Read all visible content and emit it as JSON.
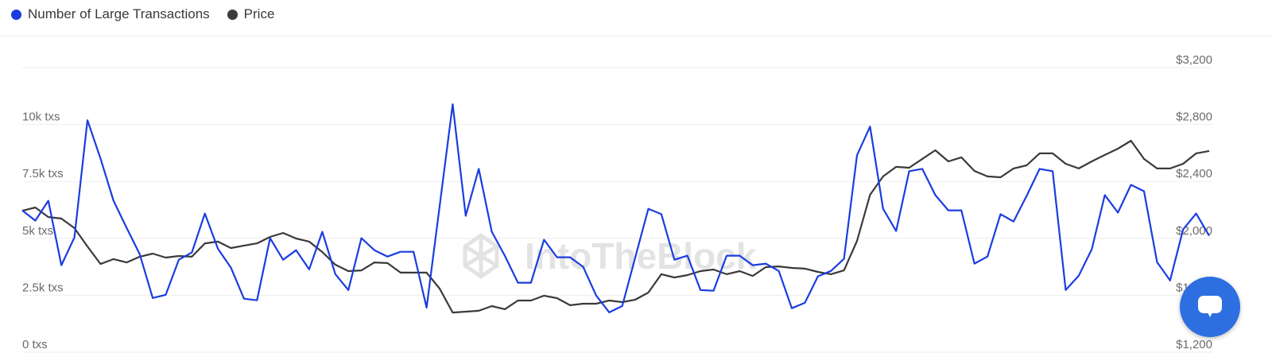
{
  "legend": [
    {
      "label": "Number of Large Transactions",
      "color": "#1a3de0"
    },
    {
      "label": "Price",
      "color": "#3a3a3a"
    }
  ],
  "watermark": "IntoTheBlock",
  "chat_button": {
    "icon": "chat-bubble-icon",
    "color": "#2d6fe0"
  },
  "chart_data": {
    "type": "line",
    "grid": true,
    "legend_position": "top-left",
    "y_left": {
      "ticks": [
        "0 txs",
        "2.5k txs",
        "5k txs",
        "7.5k txs",
        "10k txs"
      ],
      "tick_values": [
        0,
        2500,
        5000,
        7500,
        10000
      ],
      "range": [
        0,
        12500
      ]
    },
    "y_right": {
      "ticks": [
        "$1,200",
        "$1,600",
        "$2,000",
        "$2,400",
        "$2,800",
        "$3,200"
      ],
      "tick_values": [
        1200,
        1600,
        2000,
        2400,
        2800,
        3200
      ],
      "range": [
        1200,
        3200
      ]
    },
    "series": [
      {
        "name": "Number of Large Transactions",
        "axis": "left",
        "color": "#1a3de0",
        "values": [
          6230,
          5780,
          6650,
          3820,
          5040,
          10190,
          8510,
          6650,
          5460,
          4310,
          2380,
          2520,
          4060,
          4380,
          6090,
          4550,
          3710,
          2350,
          2280,
          5010,
          4060,
          4480,
          3640,
          5290,
          3430,
          2730,
          5010,
          4480,
          4200,
          4410,
          4410,
          1960,
          6410,
          10890,
          5990,
          8050,
          5290,
          4240,
          3050,
          3050,
          4940,
          4170,
          4170,
          3750,
          2490,
          1750,
          2030,
          4170,
          6300,
          6060,
          4060,
          4240,
          2730,
          2700,
          4240,
          4240,
          3820,
          3890,
          3570,
          1930,
          2170,
          3330,
          3570,
          4100,
          8650,
          9910,
          6300,
          5320,
          7950,
          8050,
          6900,
          6230,
          6230,
          3890,
          4200,
          6060,
          5740,
          6860,
          8050,
          7950,
          2730,
          3360,
          4520,
          6900,
          6130,
          7350,
          7070,
          3960,
          3150,
          5390,
          6090,
          5110
        ]
      },
      {
        "name": "Price",
        "axis": "right",
        "color": "#3a3a3a",
        "values": [
          2194,
          2217,
          2150,
          2139,
          2072,
          1943,
          1820,
          1854,
          1831,
          1871,
          1893,
          1865,
          1876,
          1871,
          1965,
          1977,
          1932,
          1949,
          1965,
          2010,
          2038,
          1999,
          1977,
          1904,
          1815,
          1770,
          1775,
          1831,
          1826,
          1759,
          1759,
          1759,
          1647,
          1479,
          1485,
          1491,
          1524,
          1502,
          1563,
          1563,
          1597,
          1580,
          1530,
          1541,
          1541,
          1563,
          1552,
          1569,
          1619,
          1748,
          1725,
          1742,
          1770,
          1781,
          1748,
          1770,
          1736,
          1798,
          1803,
          1792,
          1787,
          1764,
          1748,
          1775,
          1982,
          2306,
          2435,
          2502,
          2496,
          2558,
          2619,
          2541,
          2569,
          2474,
          2435,
          2429,
          2491,
          2513,
          2597,
          2597,
          2524,
          2491,
          2541,
          2586,
          2630,
          2686,
          2558,
          2491,
          2491,
          2524,
          2597,
          2614
        ]
      }
    ]
  }
}
